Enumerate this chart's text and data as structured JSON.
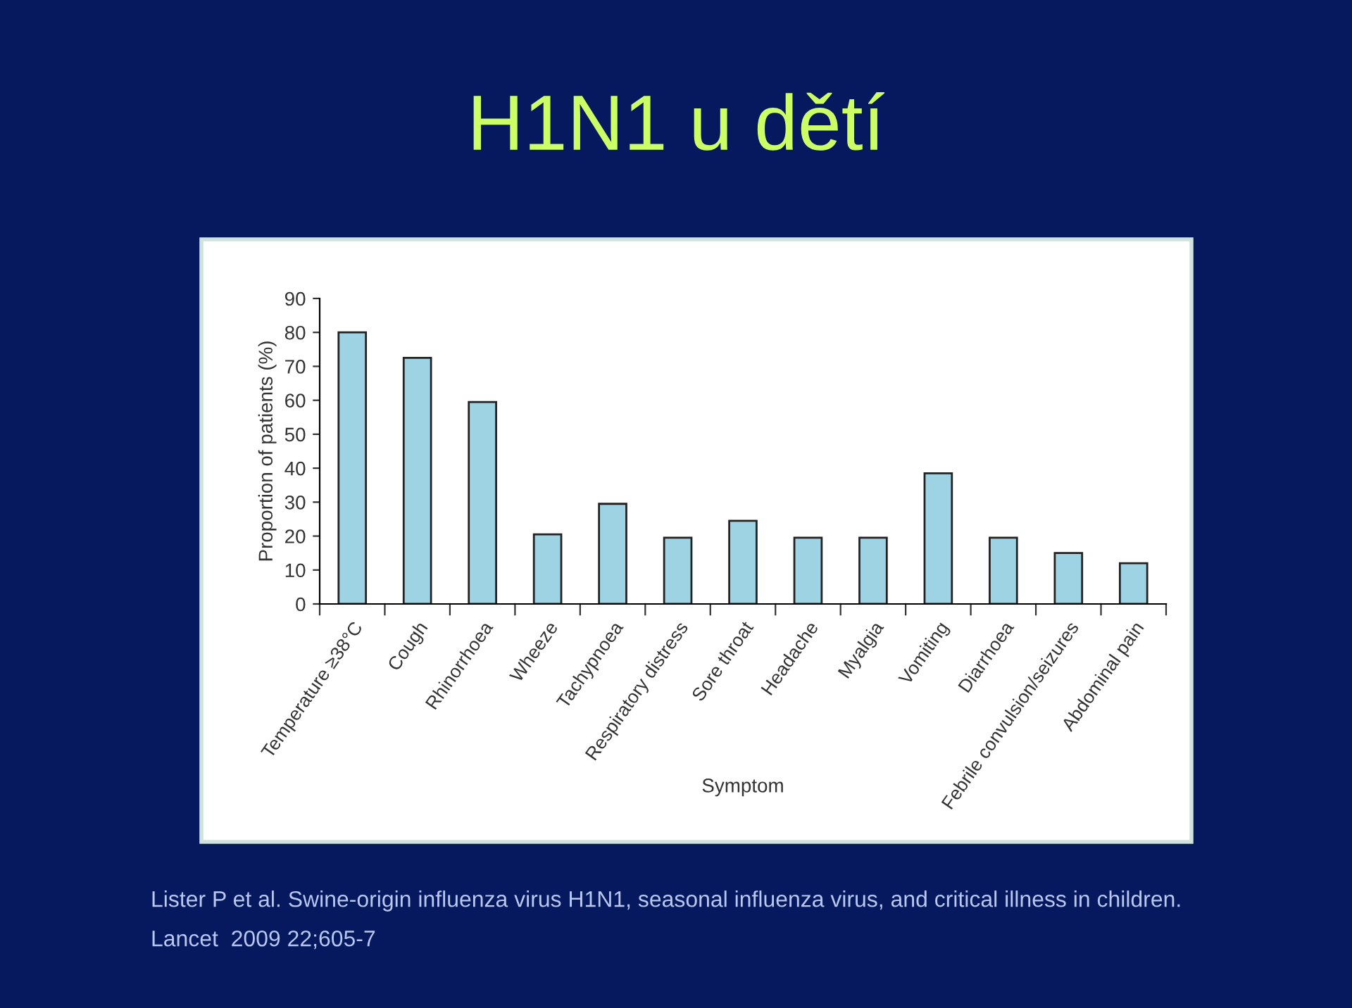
{
  "chart_data": {
    "type": "bar",
    "title": "H1N1 u dětí",
    "xlabel": "Symptom",
    "ylabel": "Proportion of patients (%)",
    "categories": [
      "Temperature ≥38°C",
      "Cough",
      "Rhinorrhoea",
      "Wheeze",
      "Tachypnoea",
      "Respiratory distress",
      "Sore throat",
      "Headache",
      "Myalgia",
      "Vomiting",
      "Diarrhoea",
      "Febrile convulsion/seizures",
      "Abdominal pain"
    ],
    "values": [
      80,
      72.5,
      59.5,
      20.5,
      29.5,
      19.5,
      24.5,
      19.5,
      19.5,
      38.5,
      19.5,
      15,
      12
    ],
    "color": "#9dd3e3",
    "ylim": [
      0,
      90
    ],
    "yticks": [
      0,
      10,
      20,
      30,
      40,
      50,
      60,
      70,
      80,
      90
    ],
    "grid": false,
    "legend": false,
    "annotations": [
      "Lister P et al. Swine-origin influenza virus H1N1, seasonal influenza virus, and critical illness in children.",
      "Lancet  2009 22;605-7"
    ]
  }
}
